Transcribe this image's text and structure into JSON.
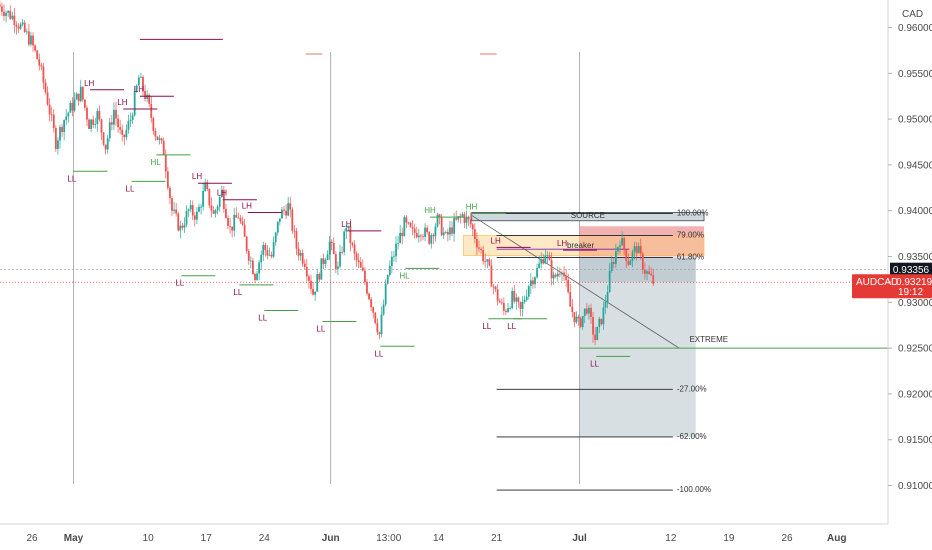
{
  "chart_data": {
    "type": "candlestick",
    "symbol": "AUDCAD",
    "currency": "CAD",
    "y_ticks": [
      "0.96000",
      "0.95500",
      "0.95000",
      "0.94500",
      "0.94000",
      "0.93500",
      "0.93000",
      "0.92500",
      "0.92000",
      "0.91500",
      "0.91000"
    ],
    "ylim": [
      0.9058,
      0.963
    ],
    "x_ticks": [
      {
        "label": "26",
        "date": "2021-04-26"
      },
      {
        "label": "May",
        "date": "2021-05-01"
      },
      {
        "label": "10",
        "date": "2021-05-10"
      },
      {
        "label": "17",
        "date": "2021-05-17"
      },
      {
        "label": "24",
        "date": "2021-05-24"
      },
      {
        "label": "Jun",
        "date": "2021-06-01"
      },
      {
        "label": "13:00",
        "date": "2021-06-08"
      },
      {
        "label": "14",
        "date": "2021-06-14"
      },
      {
        "label": "21",
        "date": "2021-06-21"
      },
      {
        "label": "Jul",
        "date": "2021-07-01"
      },
      {
        "label": "12",
        "date": "2021-07-12"
      },
      {
        "label": "19",
        "date": "2021-07-19"
      },
      {
        "label": "26",
        "date": "2021-07-26"
      },
      {
        "label": "Aug",
        "date": "2021-08-01"
      }
    ],
    "price_path": [
      [
        "2021-04-22",
        0.9625
      ],
      [
        "2021-04-24",
        0.961
      ],
      [
        "2021-04-26",
        0.9585
      ],
      [
        "2021-04-27",
        0.956
      ],
      [
        "2021-04-28",
        0.952
      ],
      [
        "2021-04-29",
        0.9475
      ],
      [
        "2021-04-30",
        0.95
      ],
      [
        "2021-05-02",
        0.953
      ],
      [
        "2021-05-03",
        0.9495
      ],
      [
        "2021-05-04",
        0.9505
      ],
      [
        "2021-05-05",
        0.947
      ],
      [
        "2021-05-06",
        0.951
      ],
      [
        "2021-05-07",
        0.9475
      ],
      [
        "2021-05-08",
        0.95
      ],
      [
        "2021-05-09",
        0.9545
      ],
      [
        "2021-05-10",
        0.952
      ],
      [
        "2021-05-11",
        0.9485
      ],
      [
        "2021-05-12",
        0.9465
      ],
      [
        "2021-05-13",
        0.94
      ],
      [
        "2021-05-14",
        0.938
      ],
      [
        "2021-05-15",
        0.94
      ],
      [
        "2021-05-16",
        0.9395
      ],
      [
        "2021-05-17",
        0.9425
      ],
      [
        "2021-05-18",
        0.9395
      ],
      [
        "2021-05-19",
        0.942
      ],
      [
        "2021-05-20",
        0.938
      ],
      [
        "2021-05-21",
        0.9395
      ],
      [
        "2021-05-22",
        0.936
      ],
      [
        "2021-05-23",
        0.933
      ],
      [
        "2021-05-24",
        0.936
      ],
      [
        "2021-05-25",
        0.935
      ],
      [
        "2021-05-26",
        0.9395
      ],
      [
        "2021-05-27",
        0.9405
      ],
      [
        "2021-05-28",
        0.936
      ],
      [
        "2021-05-29",
        0.9345
      ],
      [
        "2021-05-30",
        0.931
      ],
      [
        "2021-05-31",
        0.934
      ],
      [
        "2021-06-01",
        0.9365
      ],
      [
        "2021-06-02",
        0.9335
      ],
      [
        "2021-06-03",
        0.9385
      ],
      [
        "2021-06-04",
        0.935
      ],
      [
        "2021-06-05",
        0.933
      ],
      [
        "2021-06-06",
        0.93
      ],
      [
        "2021-06-07",
        0.9265
      ],
      [
        "2021-06-08",
        0.933
      ],
      [
        "2021-06-09",
        0.936
      ],
      [
        "2021-06-10",
        0.9385
      ],
      [
        "2021-06-11",
        0.9375
      ],
      [
        "2021-06-12",
        0.938
      ],
      [
        "2021-06-13",
        0.937
      ],
      [
        "2021-06-14",
        0.939
      ],
      [
        "2021-06-15",
        0.937
      ],
      [
        "2021-06-16",
        0.9385
      ],
      [
        "2021-06-17",
        0.9395
      ],
      [
        "2021-06-18",
        0.9385
      ],
      [
        "2021-06-19",
        0.936
      ],
      [
        "2021-06-20",
        0.934
      ],
      [
        "2021-06-21",
        0.931
      ],
      [
        "2021-06-22",
        0.929
      ],
      [
        "2021-06-23",
        0.9305
      ],
      [
        "2021-06-24",
        0.929
      ],
      [
        "2021-06-25",
        0.932
      ],
      [
        "2021-06-26",
        0.9335
      ],
      [
        "2021-06-27",
        0.9355
      ],
      [
        "2021-06-28",
        0.9325
      ],
      [
        "2021-06-29",
        0.934
      ],
      [
        "2021-06-30",
        0.9295
      ],
      [
        "2021-07-01",
        0.9275
      ],
      [
        "2021-07-02",
        0.9295
      ],
      [
        "2021-07-03",
        0.926
      ],
      [
        "2021-07-04",
        0.929
      ],
      [
        "2021-07-05",
        0.934
      ],
      [
        "2021-07-06",
        0.937
      ],
      [
        "2021-07-07",
        0.9345
      ],
      [
        "2021-07-08",
        0.936
      ],
      [
        "2021-07-09",
        0.9335
      ],
      [
        "2021-07-10",
        0.9322
      ]
    ],
    "pivot_labels": [
      {
        "text": "LH",
        "date": "2021-05-03",
        "price": 0.9532,
        "kind": "high"
      },
      {
        "text": "LH",
        "date": "2021-05-07",
        "price": 0.9511,
        "kind": "high"
      },
      {
        "text": "LH",
        "date": "2021-05-09",
        "price": 0.9525,
        "kind": "high"
      },
      {
        "text": "LL",
        "date": "2021-05-01",
        "price": 0.9443,
        "kind": "low"
      },
      {
        "text": "LL",
        "date": "2021-05-08",
        "price": 0.9432,
        "kind": "low"
      },
      {
        "text": "HL",
        "date": "2021-05-11",
        "price": 0.9461,
        "kind": "low-green"
      },
      {
        "text": "LH",
        "date": "2021-05-16",
        "price": 0.943,
        "kind": "high"
      },
      {
        "text": "LH",
        "date": "2021-05-19",
        "price": 0.9412,
        "kind": "high"
      },
      {
        "text": "LH",
        "date": "2021-05-22",
        "price": 0.9398,
        "kind": "high"
      },
      {
        "text": "LL",
        "date": "2021-05-14",
        "price": 0.9329,
        "kind": "low"
      },
      {
        "text": "LL",
        "date": "2021-05-21",
        "price": 0.9319,
        "kind": "low"
      },
      {
        "text": "LL",
        "date": "2021-05-24",
        "price": 0.9291,
        "kind": "low"
      },
      {
        "text": "LL",
        "date": "2021-05-31",
        "price": 0.9279,
        "kind": "low"
      },
      {
        "text": "LH",
        "date": "2021-06-03",
        "price": 0.9378,
        "kind": "high"
      },
      {
        "text": "LL",
        "date": "2021-06-07",
        "price": 0.9252,
        "kind": "low"
      },
      {
        "text": "HH",
        "date": "2021-06-13",
        "price": 0.9393,
        "kind": "high-green"
      },
      {
        "text": "HH",
        "date": "2021-06-18",
        "price": 0.9397,
        "kind": "high-green"
      },
      {
        "text": "HL",
        "date": "2021-06-10",
        "price": 0.9337,
        "kind": "low-green"
      },
      {
        "text": "LH",
        "date": "2021-06-21",
        "price": 0.936,
        "kind": "high"
      },
      {
        "text": "LH",
        "date": "2021-06-29",
        "price": 0.9357,
        "kind": "high"
      },
      {
        "text": "LL",
        "date": "2021-06-20",
        "price": 0.9282,
        "kind": "low"
      },
      {
        "text": "LL",
        "date": "2021-06-23",
        "price": 0.9282,
        "kind": "low"
      },
      {
        "text": "LL",
        "date": "2021-07-03",
        "price": 0.9241,
        "kind": "low"
      }
    ],
    "fib_levels": [
      {
        "label": "100.00%",
        "price": 0.9397
      },
      {
        "label": "79.00%",
        "price": 0.9373
      },
      {
        "label": "61.80%",
        "price": 0.9349
      },
      {
        "label": "-27.00%",
        "price": 0.9205
      },
      {
        "label": "-62.00%",
        "price": 0.9153
      },
      {
        "label": "-100.00%",
        "price": 0.9095
      }
    ],
    "zones": {
      "source_label": "SOURCE",
      "breaker_label": "breaker",
      "extreme_label": "EXTREME",
      "extreme_price": 0.925
    },
    "tags": {
      "symbol_label": "AUDCAD",
      "current_price": "0.93219",
      "countdown": "19:12",
      "crosshair_price": "0.93356"
    },
    "colors": {
      "up": "#26a69a",
      "down": "#ef5350",
      "high_label": "#880e4f",
      "low_label": "#43a047",
      "price_tag": "#e53935",
      "crosshair_tag": "#131722"
    }
  }
}
